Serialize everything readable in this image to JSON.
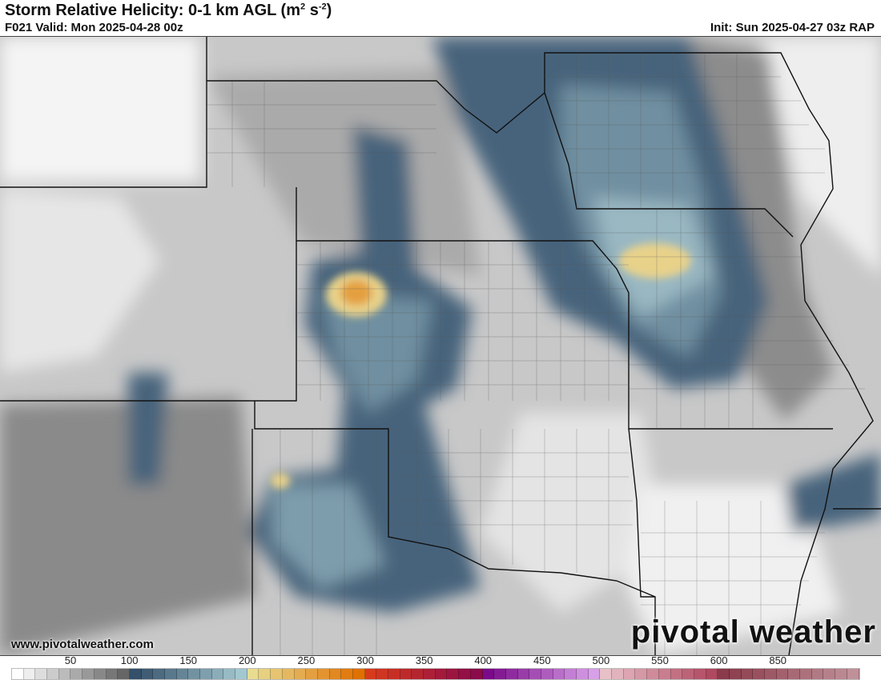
{
  "header": {
    "title": "Storm Relative Helicity: 0-1 km AGL (m",
    "title_unit_sup1": "2",
    "title_unit_mid": " s",
    "title_unit_sup2": "-2",
    "title_close": ")",
    "valid": "F021 Valid: Mon 2025-04-28 00z",
    "init": "Init: Sun 2025-04-27 03z RAP"
  },
  "footer": {
    "website": "www.pivotalweather.com",
    "logo": "pivotal weather"
  },
  "colorbar": {
    "ticks": [
      "50",
      "100",
      "150",
      "200",
      "250",
      "300",
      "350",
      "400",
      "450",
      "500",
      "550",
      "600",
      "850"
    ],
    "anchors": [
      "#ffffff",
      "#666666",
      "#34506a",
      "#a3c7cf",
      "#e8dc90",
      "#e07000",
      "#d83a1c",
      "#8a0a4a",
      "#7a0a8a",
      "#d8a0e8",
      "#e8c0c8",
      "#b04860",
      "#8a3a4a",
      "#c09098"
    ]
  },
  "colors": {
    "gray_light": "#d8d8d8",
    "gray_mid": "#9a9a9a",
    "gray_dark": "#6e6e6e",
    "blue_dark": "#46647c",
    "blue_mid": "#6f8fa0",
    "blue_light": "#9ab8c2",
    "yellow": "#e8d28a",
    "orange": "#e4a040"
  }
}
